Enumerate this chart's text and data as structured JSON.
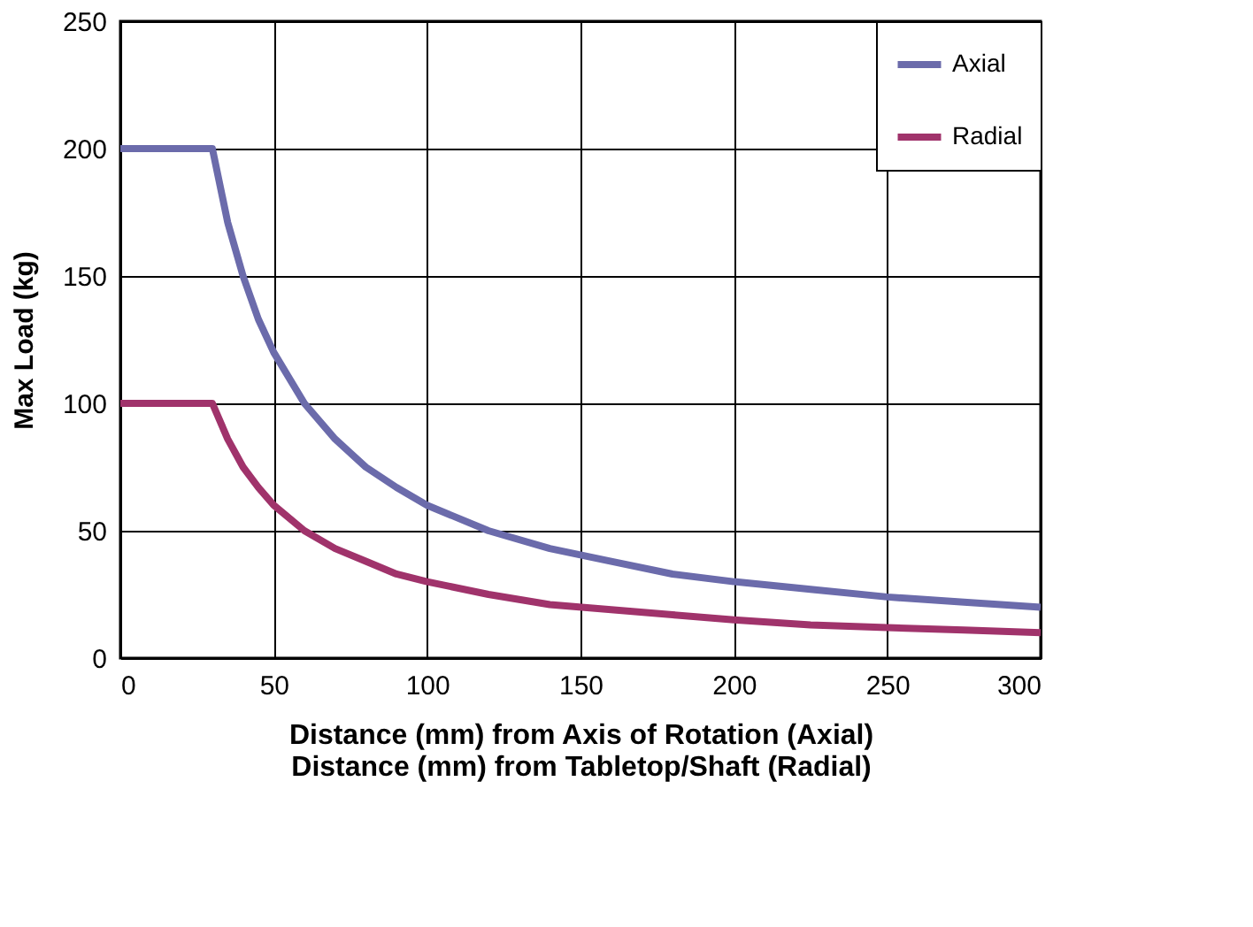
{
  "chart_data": {
    "type": "line",
    "xlabel": "Distance (mm) from Axis of Rotation (Axial)\nDistance (mm) from Tabletop/Shaft (Radial)",
    "ylabel": "Max Load (kg)",
    "x": [
      0,
      30,
      35,
      40,
      45,
      50,
      60,
      70,
      80,
      90,
      100,
      120,
      140,
      160,
      180,
      200,
      225,
      250,
      275,
      300
    ],
    "series": [
      {
        "name": "Axial",
        "color": "#6b6bab",
        "values": [
          200,
          200,
          171,
          150,
          133,
          120,
          100,
          86,
          75,
          67,
          60,
          50,
          43,
          38,
          33,
          30,
          27,
          24,
          22,
          20
        ]
      },
      {
        "name": "Radial",
        "color": "#a0336b",
        "values": [
          100,
          100,
          86,
          75,
          67,
          60,
          50,
          43,
          38,
          33,
          30,
          25,
          21,
          19,
          17,
          15,
          13,
          12,
          11,
          10
        ]
      }
    ],
    "xlim": [
      0,
      300
    ],
    "xticks": [
      0,
      50,
      100,
      150,
      200,
      250,
      300
    ],
    "ylim": [
      0,
      250
    ],
    "yticks": [
      0,
      50,
      100,
      150,
      200,
      250
    ],
    "grid": true,
    "legend": "top right",
    "marker": "none",
    "line_style": "solid"
  }
}
